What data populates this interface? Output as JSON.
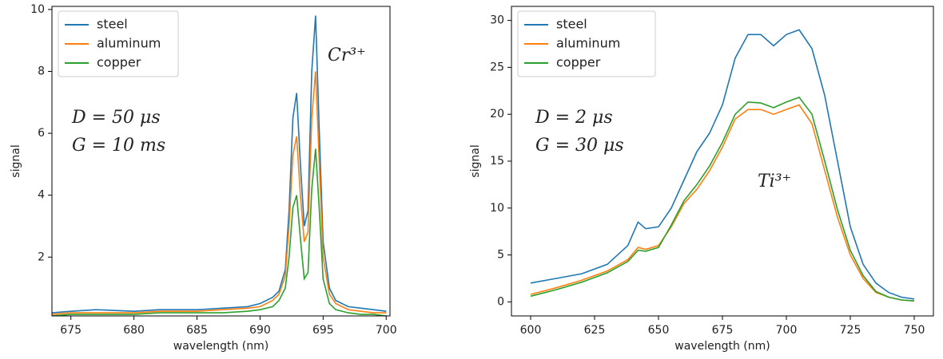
{
  "chart_data": [
    {
      "type": "line",
      "xlabel": "wavelength (nm)",
      "ylabel": "signal",
      "x": [
        673.5,
        675,
        677,
        680,
        682,
        685,
        687,
        689,
        690,
        691,
        691.5,
        692,
        692.3,
        692.6,
        692.9,
        693.2,
        693.5,
        693.8,
        694.1,
        694.4,
        694.7,
        695,
        695.5,
        696,
        697,
        698,
        699,
        700
      ],
      "series": [
        {
          "name": "steel",
          "color": "#1f77b4",
          "values": [
            0.2,
            0.25,
            0.3,
            0.25,
            0.3,
            0.3,
            0.35,
            0.4,
            0.5,
            0.7,
            0.9,
            1.6,
            3.5,
            6.5,
            7.3,
            5,
            3,
            3.5,
            8,
            9.8,
            6,
            2.5,
            1,
            0.6,
            0.4,
            0.35,
            0.3,
            0.25
          ]
        },
        {
          "name": "aluminum",
          "color": "#ff7f0e",
          "values": [
            0.15,
            0.2,
            0.2,
            0.2,
            0.25,
            0.25,
            0.3,
            0.35,
            0.4,
            0.6,
            0.8,
            1.4,
            3,
            5.3,
            5.9,
            4,
            2.5,
            2.8,
            6.5,
            8,
            5,
            2,
            0.8,
            0.5,
            0.3,
            0.25,
            0.2,
            0.2
          ]
        },
        {
          "name": "copper",
          "color": "#2ca02c",
          "values": [
            0.1,
            0.15,
            0.15,
            0.15,
            0.2,
            0.2,
            0.2,
            0.25,
            0.3,
            0.4,
            0.6,
            1,
            2,
            3.6,
            4,
            2.6,
            1.3,
            1.5,
            4.2,
            5.5,
            3.5,
            1.3,
            0.5,
            0.3,
            0.2,
            0.15,
            0.15,
            0.1
          ]
        }
      ],
      "xlim": [
        673.5,
        700.3
      ],
      "xticks": [
        675,
        680,
        685,
        690,
        695,
        700
      ],
      "ylim": [
        0.1,
        10.1
      ],
      "yticks": [
        2,
        4,
        6,
        8,
        10
      ],
      "legend": "upper left",
      "annotations": [
        "Cr³⁺",
        "D = 50 μs",
        "G = 10 ms"
      ]
    },
    {
      "type": "line",
      "xlabel": "wavelength (nm)",
      "ylabel": "signal",
      "x": [
        600,
        610,
        620,
        630,
        638,
        642,
        645,
        650,
        655,
        660,
        665,
        670,
        675,
        680,
        685,
        690,
        695,
        700,
        705,
        710,
        715,
        720,
        725,
        730,
        735,
        740,
        745,
        750
      ],
      "series": [
        {
          "name": "steel",
          "color": "#1f77b4",
          "values": [
            2,
            2.5,
            3,
            4,
            6,
            8.5,
            7.8,
            8,
            10,
            13,
            16,
            18,
            21,
            26,
            28.5,
            28.5,
            27.3,
            28.5,
            29,
            27,
            22,
            15,
            8,
            4,
            2,
            1,
            0.5,
            0.3
          ]
        },
        {
          "name": "aluminum",
          "color": "#ff7f0e",
          "values": [
            0.8,
            1.5,
            2.3,
            3.3,
            4.5,
            5.8,
            5.6,
            6,
            8,
            10.5,
            12,
            14,
            16.5,
            19.5,
            20.5,
            20.5,
            20,
            20.5,
            21,
            19,
            14,
            9,
            5,
            2.5,
            1,
            0.5,
            0.2,
            0.1
          ]
        },
        {
          "name": "copper",
          "color": "#2ca02c",
          "values": [
            0.6,
            1.3,
            2.1,
            3.1,
            4.3,
            5.5,
            5.4,
            5.8,
            8.2,
            10.8,
            12.5,
            14.5,
            17,
            20,
            21.3,
            21.2,
            20.7,
            21.3,
            21.8,
            20,
            15,
            9.8,
            5.5,
            2.8,
            1.1,
            0.5,
            0.2,
            0.1
          ]
        }
      ],
      "xlim": [
        592.5,
        757.5
      ],
      "xticks": [
        600,
        625,
        650,
        675,
        700,
        725,
        750
      ],
      "ylim": [
        -1.5,
        31.5
      ],
      "yticks": [
        0,
        5,
        10,
        15,
        20,
        25,
        30
      ],
      "legend": "upper left",
      "annotations": [
        "D = 2 μs",
        "G = 30 μs",
        "Ti³⁺"
      ]
    }
  ]
}
